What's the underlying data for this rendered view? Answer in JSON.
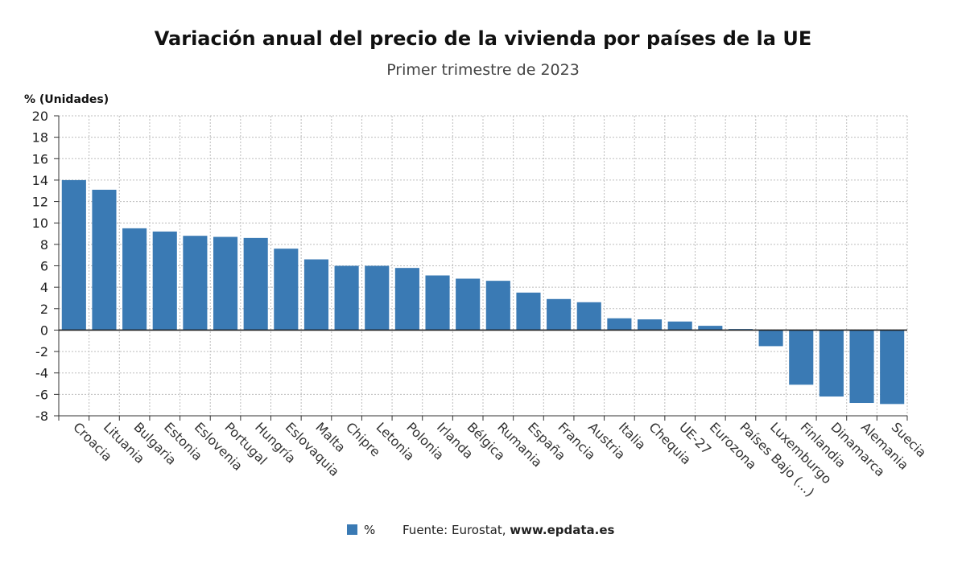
{
  "chart_data": {
    "type": "bar",
    "title": "Variación anual del precio de la vivienda por países de la UE",
    "subtitle": "Primer trimestre de 2023",
    "ylabel": "% (Unidades)",
    "xlabel": "",
    "ylim": [
      -8,
      20
    ],
    "yticks": [
      20,
      18,
      16,
      14,
      12,
      10,
      8,
      6,
      4,
      2,
      0,
      -2,
      -4,
      -6,
      -8
    ],
    "grid": true,
    "bar_color": "#3a7ab4",
    "categories": [
      "Croacia",
      "Lituania",
      "Bulgaria",
      "Estonia",
      "Eslovenia",
      "Portugal",
      "Hungría",
      "Eslovaquia",
      "Malta",
      "Chipre",
      "Letonia",
      "Polonia",
      "Irlanda",
      "Bélgica",
      "Rumania",
      "España",
      "Francia",
      "Austria",
      "Italia",
      "Chequia",
      "UE-27",
      "Eurozona",
      "Países Bajo (...)",
      "Luxemburgo",
      "Finlandia",
      "Dinamarca",
      "Alemania",
      "Suecia"
    ],
    "series": [
      {
        "name": "%",
        "values": [
          14.0,
          13.1,
          9.5,
          9.2,
          8.8,
          8.7,
          8.6,
          7.6,
          6.6,
          6.0,
          6.0,
          5.8,
          5.1,
          4.8,
          4.6,
          3.5,
          2.9,
          2.6,
          1.1,
          1.0,
          0.8,
          0.4,
          0.1,
          -1.5,
          -5.1,
          -6.2,
          -6.8,
          -6.9
        ]
      }
    ],
    "legend": {
      "position": "bottom",
      "label": "%"
    }
  },
  "source": {
    "prefix": "Fuente: Eurostat, ",
    "site": "www.epdata.es"
  }
}
